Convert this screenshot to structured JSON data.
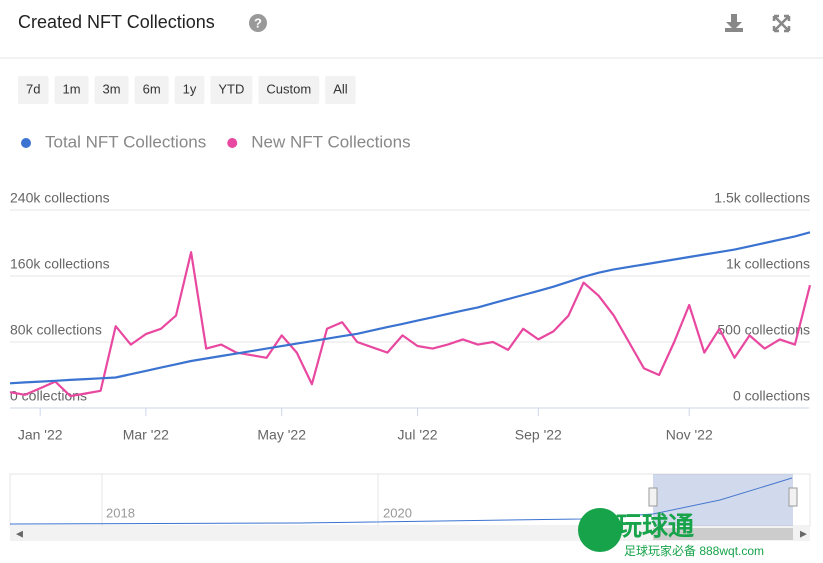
{
  "header": {
    "title": "Created NFT Collections"
  },
  "range_buttons": [
    "7d",
    "1m",
    "3m",
    "6m",
    "1y",
    "YTD",
    "Custom",
    "All"
  ],
  "chart_data": {
    "type": "line",
    "categories": [
      null,
      null,
      "Jan '22",
      null,
      null,
      null,
      null,
      null,
      null,
      "Mar '22",
      null,
      null,
      null,
      null,
      null,
      null,
      null,
      null,
      "May '22",
      null,
      null,
      null,
      null,
      null,
      null,
      null,
      null,
      "Jul '22",
      null,
      null,
      null,
      null,
      null,
      null,
      null,
      "Sep '22",
      null,
      null,
      null,
      null,
      null,
      null,
      null,
      null,
      null,
      "Nov '22",
      null,
      null,
      null,
      null,
      null,
      null,
      null,
      null
    ],
    "series": [
      {
        "name": "Total NFT Collections",
        "color": "#3b73d1",
        "values": [
          30000,
          31000,
          32000,
          33000,
          34000,
          35000,
          36000,
          37000,
          41000,
          45000,
          49000,
          53000,
          57000,
          60000,
          63000,
          66000,
          69000,
          72000,
          75000,
          78000,
          81000,
          84000,
          87000,
          90000,
          94000,
          98000,
          102000,
          106000,
          110000,
          114000,
          118000,
          122000,
          127000,
          132000,
          137000,
          142000,
          147000,
          153000,
          159000,
          164000,
          168000,
          171000,
          174000,
          177000,
          180000,
          183000,
          186000,
          189000,
          192000,
          196000,
          200000,
          204000,
          208000,
          213000
        ]
      },
      {
        "name": "New NFT Collections",
        "color": "#e8489f",
        "axis": "y2",
        "values": [
          120,
          100,
          150,
          200,
          90,
          110,
          130,
          620,
          480,
          560,
          600,
          700,
          1180,
          450,
          480,
          420,
          400,
          380,
          550,
          420,
          180,
          600,
          650,
          500,
          460,
          420,
          550,
          470,
          450,
          480,
          520,
          480,
          500,
          440,
          600,
          520,
          580,
          700,
          950,
          850,
          700,
          500,
          300,
          250,
          500,
          780,
          420,
          600,
          380,
          550,
          450,
          520,
          480,
          930
        ]
      }
    ],
    "ylim": [
      0,
      240000
    ],
    "yticks": [
      {
        "value": 0,
        "label": "0 collections"
      },
      {
        "value": 80000,
        "label": "80k collections"
      },
      {
        "value": 160000,
        "label": "160k collections"
      },
      {
        "value": 240000,
        "label": "240k collections"
      }
    ],
    "y2lim": [
      0,
      1500
    ],
    "y2ticks": [
      {
        "value": 0,
        "label": "0 collections"
      },
      {
        "value": 500,
        "label": "500 collections"
      },
      {
        "value": 1000,
        "label": "1k collections"
      },
      {
        "value": 1500,
        "label": "1.5k collections"
      }
    ],
    "grid": true,
    "legend": "top-left"
  },
  "navigator": {
    "labels": [
      "2018",
      "2020"
    ]
  },
  "badge": {
    "name": "玩球通",
    "tagline": "足球玩家必备 888wqt.com"
  }
}
